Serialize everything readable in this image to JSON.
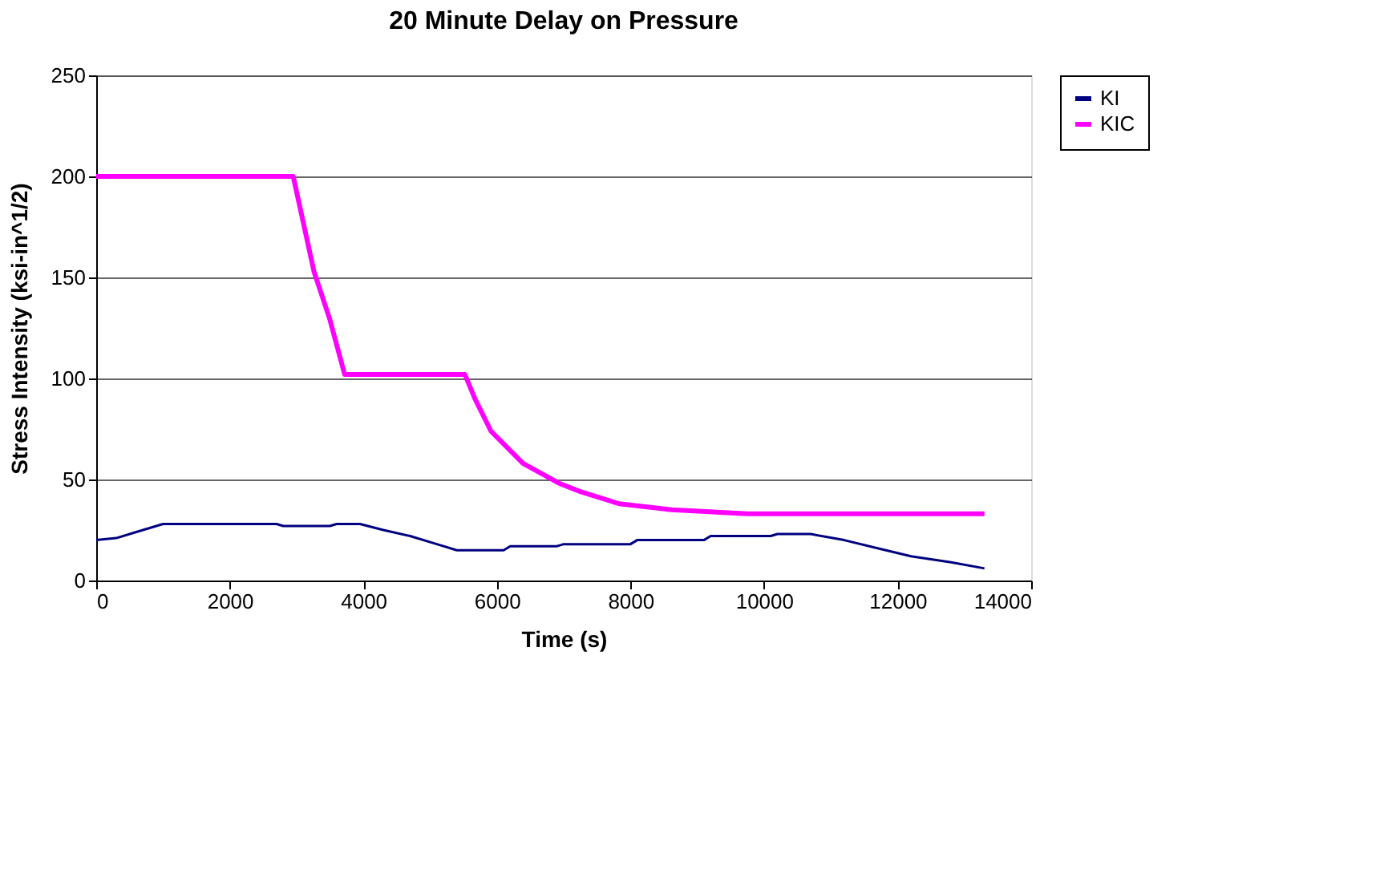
{
  "chart_data": {
    "type": "line",
    "title": "20 Minute Delay on Pressure",
    "xlabel": "Time (s)",
    "ylabel": "Stress Intensity (ksi-in^1/2)",
    "xlim": [
      0,
      14000
    ],
    "xticks": [
      0,
      2000,
      4000,
      6000,
      8000,
      10000,
      12000,
      14000
    ],
    "ylim": [
      0,
      250
    ],
    "yticks": [
      0,
      50,
      100,
      150,
      200,
      250
    ],
    "grid": "y",
    "legend": "right",
    "marker": "none",
    "line_style": "solid",
    "series": [
      {
        "name": "KI",
        "color": "#000080",
        "x": [
          0,
          300,
          600,
          1000,
          2700,
          2800,
          3500,
          3600,
          3950,
          4300,
          4700,
          5100,
          5400,
          6100,
          6200,
          6900,
          7000,
          8000,
          8100,
          9100,
          9200,
          10100,
          10200,
          10700,
          11200,
          11700,
          12200,
          12800,
          13300
        ],
        "values": [
          20,
          21,
          24,
          28,
          28,
          27,
          27,
          28,
          28,
          25,
          22,
          18,
          15,
          15,
          17,
          17,
          18,
          18,
          20,
          20,
          22,
          22,
          23,
          23,
          20,
          16,
          12,
          9,
          6
        ]
      },
      {
        "name": "KIC",
        "color": "#ff00ff",
        "x": [
          0,
          2950,
          3260,
          3500,
          3720,
          5520,
          5670,
          5910,
          6390,
          6940,
          7250,
          7830,
          8620,
          9750,
          13300
        ],
        "values": [
          200,
          200,
          153,
          129,
          102,
          102,
          90,
          74,
          58,
          48,
          44,
          38,
          35,
          33,
          33
        ]
      }
    ]
  }
}
